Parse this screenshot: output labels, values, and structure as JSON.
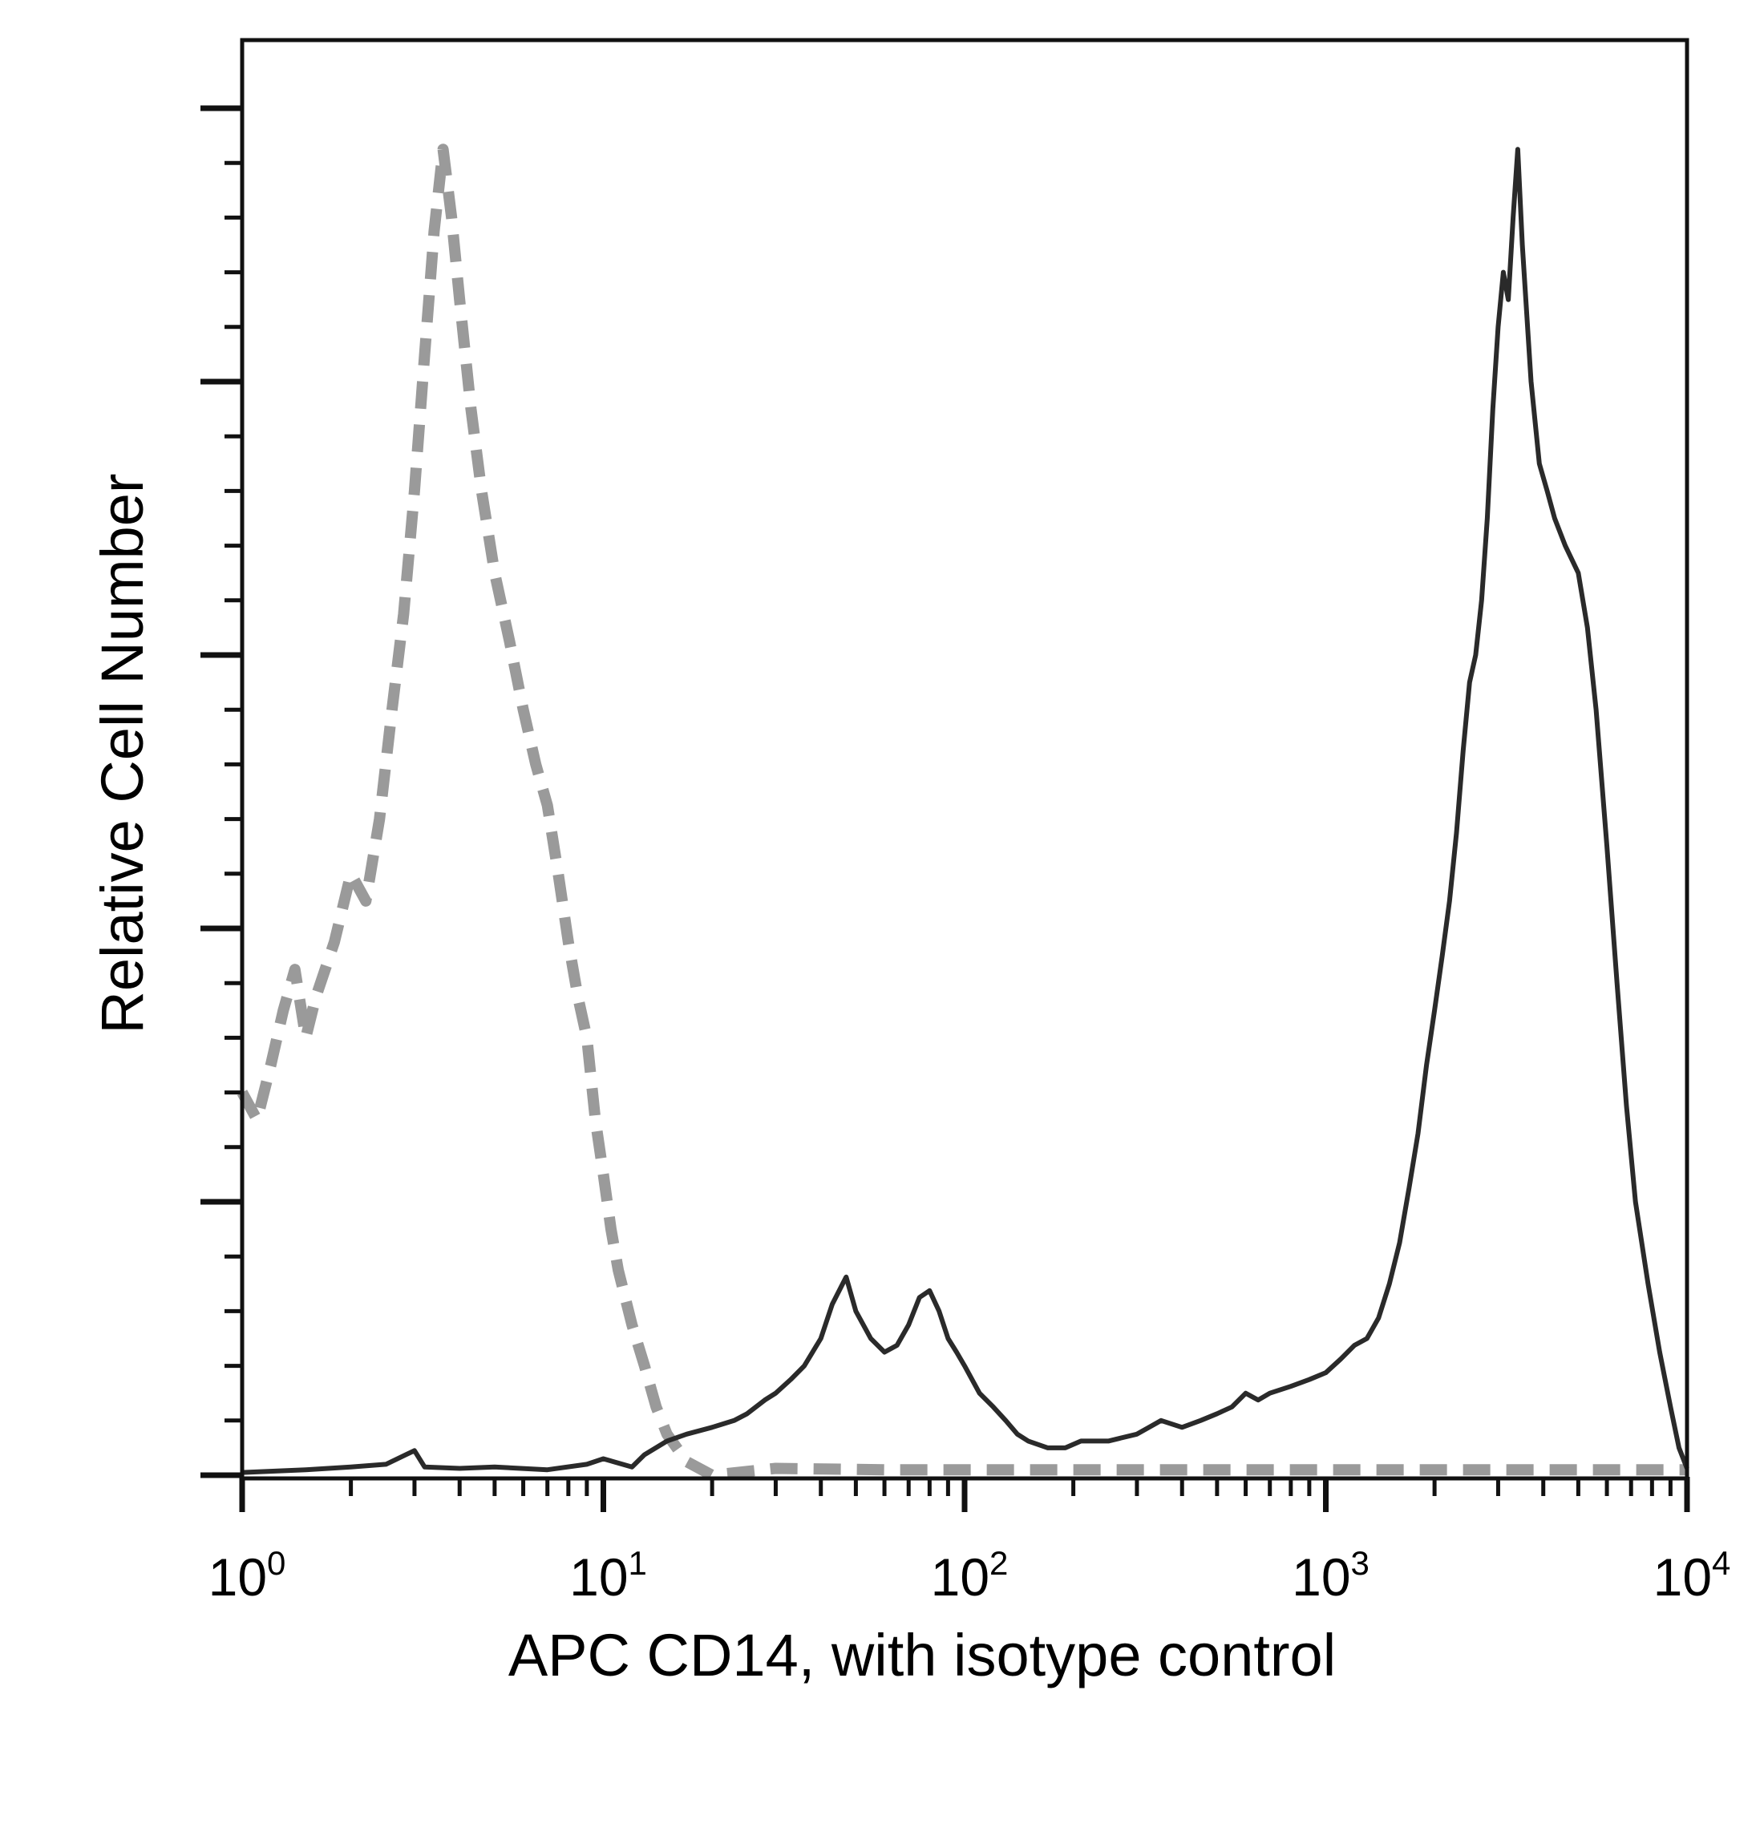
{
  "chart_data": {
    "type": "line",
    "title": "",
    "xlabel": "APC CD14, with isotype control",
    "ylabel": "Relative Cell Number",
    "x_scale": "log",
    "xlim": [
      1,
      10000
    ],
    "ylim": [
      0,
      1
    ],
    "x_ticks": [
      {
        "base": "10",
        "exp": "0",
        "value": 1
      },
      {
        "base": "10",
        "exp": "1",
        "value": 10
      },
      {
        "base": "10",
        "exp": "2",
        "value": 100
      },
      {
        "base": "10",
        "exp": "3",
        "value": 1000
      },
      {
        "base": "10",
        "exp": "4",
        "value": 10000
      }
    ],
    "grid": false,
    "legend": "none",
    "series": [
      {
        "role": "isotype-control",
        "color": "#9a9a9a",
        "style": "dashed",
        "points": [
          [
            1.0,
            0.28
          ],
          [
            1.1,
            0.26
          ],
          [
            1.2,
            0.3
          ],
          [
            1.3,
            0.34
          ],
          [
            1.4,
            0.37
          ],
          [
            1.5,
            0.32
          ],
          [
            1.6,
            0.35
          ],
          [
            1.8,
            0.39
          ],
          [
            2.0,
            0.44
          ],
          [
            2.2,
            0.42
          ],
          [
            2.4,
            0.48
          ],
          [
            2.6,
            0.56
          ],
          [
            2.8,
            0.63
          ],
          [
            3.0,
            0.72
          ],
          [
            3.2,
            0.82
          ],
          [
            3.4,
            0.91
          ],
          [
            3.6,
            0.97
          ],
          [
            3.8,
            0.92
          ],
          [
            4.0,
            0.86
          ],
          [
            4.3,
            0.78
          ],
          [
            4.6,
            0.72
          ],
          [
            5.0,
            0.66
          ],
          [
            5.5,
            0.61
          ],
          [
            6.0,
            0.56
          ],
          [
            6.5,
            0.52
          ],
          [
            7.0,
            0.49
          ],
          [
            7.5,
            0.44
          ],
          [
            8.0,
            0.39
          ],
          [
            8.5,
            0.35
          ],
          [
            9.0,
            0.32
          ],
          [
            9.5,
            0.26
          ],
          [
            10.0,
            0.22
          ],
          [
            10.5,
            0.18
          ],
          [
            11.0,
            0.15
          ],
          [
            12.0,
            0.11
          ],
          [
            13.0,
            0.08
          ],
          [
            14.0,
            0.05
          ],
          [
            15.0,
            0.03
          ],
          [
            17.0,
            0.01
          ],
          [
            20.0,
            0.0
          ],
          [
            30.0,
            0.005
          ],
          [
            60.0,
            0.004
          ],
          [
            200.0,
            0.004
          ],
          [
            1000.0,
            0.004
          ],
          [
            4000.0,
            0.004
          ],
          [
            10000.0,
            0.004
          ]
        ]
      },
      {
        "role": "apc-cd14",
        "color": "#2a2a2a",
        "style": "solid",
        "points": [
          [
            1.0,
            0.002
          ],
          [
            1.5,
            0.004
          ],
          [
            2.0,
            0.006
          ],
          [
            2.5,
            0.008
          ],
          [
            3.0,
            0.018
          ],
          [
            3.2,
            0.006
          ],
          [
            4.0,
            0.005
          ],
          [
            5.0,
            0.006
          ],
          [
            7.0,
            0.004
          ],
          [
            9.0,
            0.008
          ],
          [
            10.0,
            0.012
          ],
          [
            12.0,
            0.006
          ],
          [
            13.0,
            0.015
          ],
          [
            15.0,
            0.025
          ],
          [
            17.0,
            0.03
          ],
          [
            20.0,
            0.035
          ],
          [
            23.0,
            0.04
          ],
          [
            25.0,
            0.045
          ],
          [
            28.0,
            0.055
          ],
          [
            30.0,
            0.06
          ],
          [
            33.0,
            0.07
          ],
          [
            36.0,
            0.08
          ],
          [
            40.0,
            0.1
          ],
          [
            43.0,
            0.125
          ],
          [
            47.0,
            0.145
          ],
          [
            50.0,
            0.12
          ],
          [
            55.0,
            0.1
          ],
          [
            60.0,
            0.09
          ],
          [
            65.0,
            0.095
          ],
          [
            70.0,
            0.11
          ],
          [
            75.0,
            0.13
          ],
          [
            80.0,
            0.135
          ],
          [
            85.0,
            0.12
          ],
          [
            90.0,
            0.1
          ],
          [
            95.0,
            0.09
          ],
          [
            100.0,
            0.08
          ],
          [
            110.0,
            0.06
          ],
          [
            120.0,
            0.05
          ],
          [
            130.0,
            0.04
          ],
          [
            140.0,
            0.03
          ],
          [
            150.0,
            0.025
          ],
          [
            170.0,
            0.02
          ],
          [
            190.0,
            0.02
          ],
          [
            210.0,
            0.025
          ],
          [
            250.0,
            0.025
          ],
          [
            300.0,
            0.03
          ],
          [
            350.0,
            0.04
          ],
          [
            400.0,
            0.035
          ],
          [
            450.0,
            0.04
          ],
          [
            500.0,
            0.045
          ],
          [
            550.0,
            0.05
          ],
          [
            600.0,
            0.06
          ],
          [
            650.0,
            0.055
          ],
          [
            700.0,
            0.06
          ],
          [
            800.0,
            0.065
          ],
          [
            900.0,
            0.07
          ],
          [
            1000.0,
            0.075
          ],
          [
            1100.0,
            0.085
          ],
          [
            1200.0,
            0.095
          ],
          [
            1300.0,
            0.1
          ],
          [
            1400.0,
            0.115
          ],
          [
            1500.0,
            0.14
          ],
          [
            1600.0,
            0.17
          ],
          [
            1700.0,
            0.21
          ],
          [
            1800.0,
            0.25
          ],
          [
            1900.0,
            0.3
          ],
          [
            2000.0,
            0.34
          ],
          [
            2100.0,
            0.38
          ],
          [
            2200.0,
            0.42
          ],
          [
            2300.0,
            0.47
          ],
          [
            2400.0,
            0.53
          ],
          [
            2500.0,
            0.58
          ],
          [
            2600.0,
            0.6
          ],
          [
            2700.0,
            0.64
          ],
          [
            2800.0,
            0.7
          ],
          [
            2900.0,
            0.78
          ],
          [
            3000.0,
            0.84
          ],
          [
            3100.0,
            0.88
          ],
          [
            3200.0,
            0.86
          ],
          [
            3300.0,
            0.92
          ],
          [
            3400.0,
            0.97
          ],
          [
            3500.0,
            0.9
          ],
          [
            3700.0,
            0.8
          ],
          [
            3900.0,
            0.74
          ],
          [
            4100.0,
            0.72
          ],
          [
            4300.0,
            0.7
          ],
          [
            4600.0,
            0.68
          ],
          [
            5000.0,
            0.66
          ],
          [
            5300.0,
            0.62
          ],
          [
            5600.0,
            0.56
          ],
          [
            6000.0,
            0.46
          ],
          [
            6400.0,
            0.36
          ],
          [
            6800.0,
            0.27
          ],
          [
            7200.0,
            0.2
          ],
          [
            7800.0,
            0.14
          ],
          [
            8400.0,
            0.09
          ],
          [
            9000.0,
            0.05
          ],
          [
            9500.0,
            0.02
          ],
          [
            10000.0,
            0.005
          ]
        ]
      }
    ]
  }
}
